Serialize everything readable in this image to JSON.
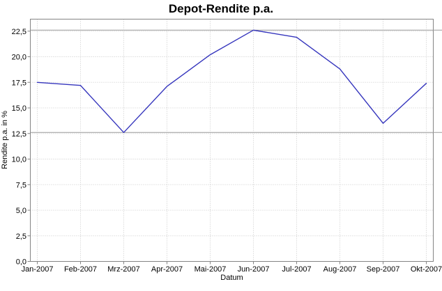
{
  "title": "Depot-Rendite p.a.",
  "chart_data": {
    "type": "line",
    "title": "Depot-Rendite p.a.",
    "xlabel": "Datum",
    "ylabel": "Rendite p.a. in %",
    "categories": [
      "Jan-2007",
      "Feb-2007",
      "Mrz-2007",
      "Apr-2007",
      "Mai-2007",
      "Jun-2007",
      "Jul-2007",
      "Aug-2007",
      "Sep-2007",
      "Okt-2007"
    ],
    "values": [
      17.5,
      17.2,
      12.6,
      17.1,
      20.2,
      22.6,
      21.9,
      18.8,
      13.5,
      17.4
    ],
    "series_name": "Depot-Rendite p.a.",
    "ytick_values": [
      0,
      2.5,
      5,
      7.5,
      10,
      12.5,
      15,
      17.5,
      20,
      22.5
    ],
    "ytick_labels": [
      "0,0",
      "2,5",
      "5,0",
      "7,5",
      "10,0",
      "12,5",
      "15,0",
      "17,5",
      "20,0",
      "22,5"
    ],
    "ylim": [
      0,
      23.7
    ],
    "grid": "dotted",
    "legend_position": "none",
    "marker_lines": {
      "max": 22.6,
      "min": 12.6
    },
    "colors": {
      "line": "#3535bd",
      "grid": "#c9c9c9",
      "axis_border": "#848484",
      "marker_line": "#9a9a9a",
      "text": "#000000",
      "background": "#ffffff"
    }
  }
}
